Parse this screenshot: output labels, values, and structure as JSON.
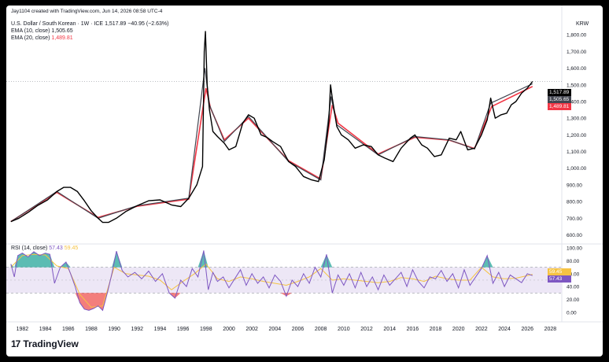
{
  "header": {
    "credit": "Jay1104 created with TradingView.com, Jun 14, 2026 08:58 UTC-4",
    "symbol_line": "U.S. Dollar / South Korean · 1W · ICE",
    "last_price": "1,517.89",
    "change": "−40.95 (−2.63%)",
    "ema10_label": "EMA (10, close)",
    "ema10_value": "1,505.65",
    "ema20_label": "EMA (20, close)",
    "ema20_value": "1,489.81",
    "currency": "KRW"
  },
  "rsi_panel": {
    "label": "RSI (14, close)",
    "value1": "57.43",
    "value2": "59.45"
  },
  "price_tags": {
    "last": "1,517.89",
    "ema10": "1,505.65",
    "ema20": "1,489.81"
  },
  "rsi_tags": {
    "ma": "59.45",
    "rsi": "57.43"
  },
  "brand": "TradingView",
  "colors": {
    "price": "#000000",
    "ema10": "#434651",
    "ema20": "#f23645",
    "rsi": "#7e57c2",
    "rsi_ma": "#f6c343",
    "band": "#ede7f6",
    "overbought": "#26a69a",
    "oversold": "#ef5350"
  },
  "chart_data": [
    {
      "type": "line",
      "title": "U.S. Dollar / South Korean · 1W · ICE",
      "ylabel": "KRW",
      "ylim": [
        560,
        1900
      ],
      "y_ticks": [
        "600.00",
        "700.00",
        "800.00",
        "900.00",
        "1,000.00",
        "1,100.00",
        "1,200.00",
        "1,300.00",
        "1,400.00",
        "1,500.00",
        "1,600.00",
        "1,700.00",
        "1,800.00"
      ],
      "x_ticks": [
        "1982",
        "1984",
        "1986",
        "1988",
        "1990",
        "1992",
        "1994",
        "1996",
        "1998",
        "2000",
        "2002",
        "2004",
        "2006",
        "2008",
        "2010",
        "2012",
        "2014",
        "2016",
        "2018",
        "2020",
        "2022",
        "2024",
        "2026",
        "2028"
      ],
      "series": [
        {
          "name": "",
          "x": [
            1981.0,
            1981.7,
            1982.5,
            1983.3,
            1984.2,
            1985.0,
            1985.6,
            1986.2,
            1986.8,
            1987.4,
            1988.0,
            1988.6,
            1989.0,
            1989.5,
            1990.2,
            1991.0,
            1992.0,
            1993.0,
            1994.0,
            1995.0,
            1995.8,
            1996.5,
            1997.2,
            1997.7,
            1997.85,
            1997.95,
            1998.1,
            1998.3,
            1998.6,
            1999.0,
            1999.6,
            2000.0,
            2000.6,
            2001.2,
            2001.7,
            2002.2,
            2002.8,
            2003.3,
            2003.8,
            2004.5,
            2005.2,
            2005.8,
            2006.5,
            2007.2,
            2007.8,
            2008.3,
            2008.7,
            2008.85,
            2009.0,
            2009.4,
            2009.8,
            2010.4,
            2011.0,
            2011.7,
            2012.4,
            2013.0,
            2013.6,
            2014.3,
            2015.0,
            2015.8,
            2016.2,
            2016.8,
            2017.3,
            2017.9,
            2018.5,
            2019.2,
            2019.8,
            2020.2,
            2020.8,
            2021.4,
            2022.0,
            2022.5,
            2022.8,
            2023.2,
            2023.7,
            2024.2,
            2024.6,
            2025.0,
            2025.5,
            2026.0,
            2026.45
          ],
          "y": [
            680,
            700,
            735,
            775,
            810,
            860,
            885,
            885,
            860,
            805,
            745,
            700,
            675,
            675,
            700,
            740,
            775,
            805,
            810,
            780,
            770,
            820,
            900,
            1010,
            1700,
            1820,
            1500,
            1350,
            1220,
            1190,
            1150,
            1110,
            1130,
            1270,
            1320,
            1300,
            1200,
            1185,
            1160,
            1130,
            1040,
            1010,
            950,
            930,
            920,
            1050,
            1280,
            1500,
            1420,
            1250,
            1200,
            1170,
            1120,
            1140,
            1130,
            1080,
            1060,
            1040,
            1120,
            1180,
            1200,
            1140,
            1120,
            1070,
            1080,
            1180,
            1170,
            1220,
            1110,
            1120,
            1200,
            1290,
            1420,
            1300,
            1320,
            1330,
            1380,
            1400,
            1450,
            1480,
            1520
          ]
        },
        {
          "name": "EMA (10, close)",
          "x": [
            1981.0,
            1985.0,
            1988.6,
            1992.0,
            1996.5,
            1997.9,
            1998.3,
            1999.6,
            2001.7,
            2005.2,
            2008.0,
            2008.9,
            2009.4,
            2013.0,
            2016.2,
            2019.2,
            2021.4,
            2022.8,
            2026.45
          ],
          "y": [
            680,
            860,
            700,
            775,
            820,
            1600,
            1380,
            1160,
            1310,
            1040,
            930,
            1430,
            1260,
            1080,
            1190,
            1170,
            1115,
            1390,
            1506
          ]
        },
        {
          "name": "EMA (20, close)",
          "x": [
            1981.0,
            1985.0,
            1988.6,
            1992.0,
            1996.5,
            1998.0,
            1998.4,
            1999.6,
            2001.7,
            2005.2,
            2008.0,
            2009.0,
            2009.5,
            2013.0,
            2016.2,
            2019.2,
            2021.4,
            2022.9,
            2026.45
          ],
          "y": [
            680,
            855,
            705,
            772,
            815,
            1480,
            1360,
            1170,
            1300,
            1045,
            935,
            1380,
            1270,
            1085,
            1185,
            1168,
            1118,
            1370,
            1490
          ]
        }
      ]
    },
    {
      "type": "line",
      "title": "RSI (14, close)",
      "ylim": [
        -5,
        100
      ],
      "y_ticks": [
        "0.00",
        "20.00",
        "40.00",
        "60.00",
        "80.00",
        "100.00"
      ],
      "series": [
        {
          "name": "",
          "x": [
            1981.0,
            1981.3,
            1981.6,
            1982.0,
            1982.5,
            1983.0,
            1983.5,
            1984.0,
            1984.4,
            1984.8,
            1985.3,
            1985.8,
            1986.2,
            1986.6,
            1987.0,
            1987.4,
            1987.8,
            1988.2,
            1988.6,
            1989.0,
            1989.4,
            1989.8,
            1990.2,
            1990.7,
            1991.2,
            1991.8,
            1992.4,
            1993.0,
            1993.6,
            1994.2,
            1994.8,
            1995.3,
            1995.8,
            1996.3,
            1996.8,
            1997.3,
            1997.8,
            1998.2,
            1998.6,
            1999.0,
            1999.5,
            2000.0,
            2000.5,
            2001.0,
            2001.5,
            2002.0,
            2002.5,
            2003.0,
            2003.5,
            2004.0,
            2004.5,
            2005.0,
            2005.5,
            2006.0,
            2006.5,
            2007.0,
            2007.5,
            2008.0,
            2008.5,
            2009.0,
            2009.5,
            2010.0,
            2010.5,
            2011.0,
            2011.5,
            2012.0,
            2012.5,
            2013.0,
            2013.5,
            2014.0,
            2014.5,
            2015.0,
            2015.5,
            2016.0,
            2016.5,
            2017.0,
            2017.5,
            2018.0,
            2018.5,
            2019.0,
            2019.5,
            2020.0,
            2020.5,
            2021.0,
            2021.5,
            2022.0,
            2022.5,
            2023.0,
            2023.5,
            2024.0,
            2024.5,
            2025.0,
            2025.5,
            2026.0,
            2026.45
          ],
          "y": [
            75,
            55,
            88,
            92,
            86,
            94,
            88,
            92,
            90,
            45,
            70,
            78,
            60,
            40,
            15,
            5,
            3,
            6,
            10,
            3,
            30,
            60,
            95,
            65,
            55,
            62,
            52,
            64,
            48,
            60,
            30,
            22,
            50,
            40,
            68,
            55,
            96,
            35,
            62,
            48,
            55,
            38,
            52,
            66,
            42,
            60,
            45,
            55,
            38,
            58,
            48,
            25,
            50,
            40,
            60,
            45,
            70,
            55,
            90,
            30,
            58,
            42,
            60,
            38,
            62,
            40,
            55,
            35,
            58,
            42,
            52,
            62,
            40,
            66,
            48,
            38,
            55,
            52,
            65,
            48,
            60,
            38,
            66,
            42,
            55,
            68,
            88,
            45,
            62,
            40,
            58,
            52,
            46,
            60,
            57
          ]
        },
        {
          "name": "",
          "x": [
            1981.0,
            1982.0,
            1983.0,
            1984.0,
            1985.0,
            1986.0,
            1987.0,
            1988.0,
            1989.0,
            1990.0,
            1991.0,
            1992.0,
            1993.0,
            1994.0,
            1995.0,
            1996.0,
            1997.0,
            1998.0,
            1999.0,
            2000.0,
            2001.0,
            2002.0,
            2003.0,
            2004.0,
            2005.0,
            2006.0,
            2007.0,
            2008.0,
            2009.0,
            2010.0,
            2011.0,
            2012.0,
            2013.0,
            2014.0,
            2015.0,
            2016.0,
            2017.0,
            2018.0,
            2019.0,
            2020.0,
            2021.0,
            2022.0,
            2023.0,
            2024.0,
            2025.0,
            2026.0,
            2026.45
          ],
          "y": [
            70,
            88,
            90,
            89,
            72,
            68,
            28,
            8,
            10,
            70,
            60,
            58,
            56,
            50,
            35,
            48,
            60,
            75,
            52,
            48,
            55,
            52,
            48,
            45,
            42,
            48,
            55,
            68,
            50,
            52,
            50,
            48,
            46,
            48,
            54,
            52,
            48,
            56,
            52,
            50,
            50,
            70,
            55,
            52,
            53,
            57,
            59
          ]
        }
      ]
    }
  ]
}
